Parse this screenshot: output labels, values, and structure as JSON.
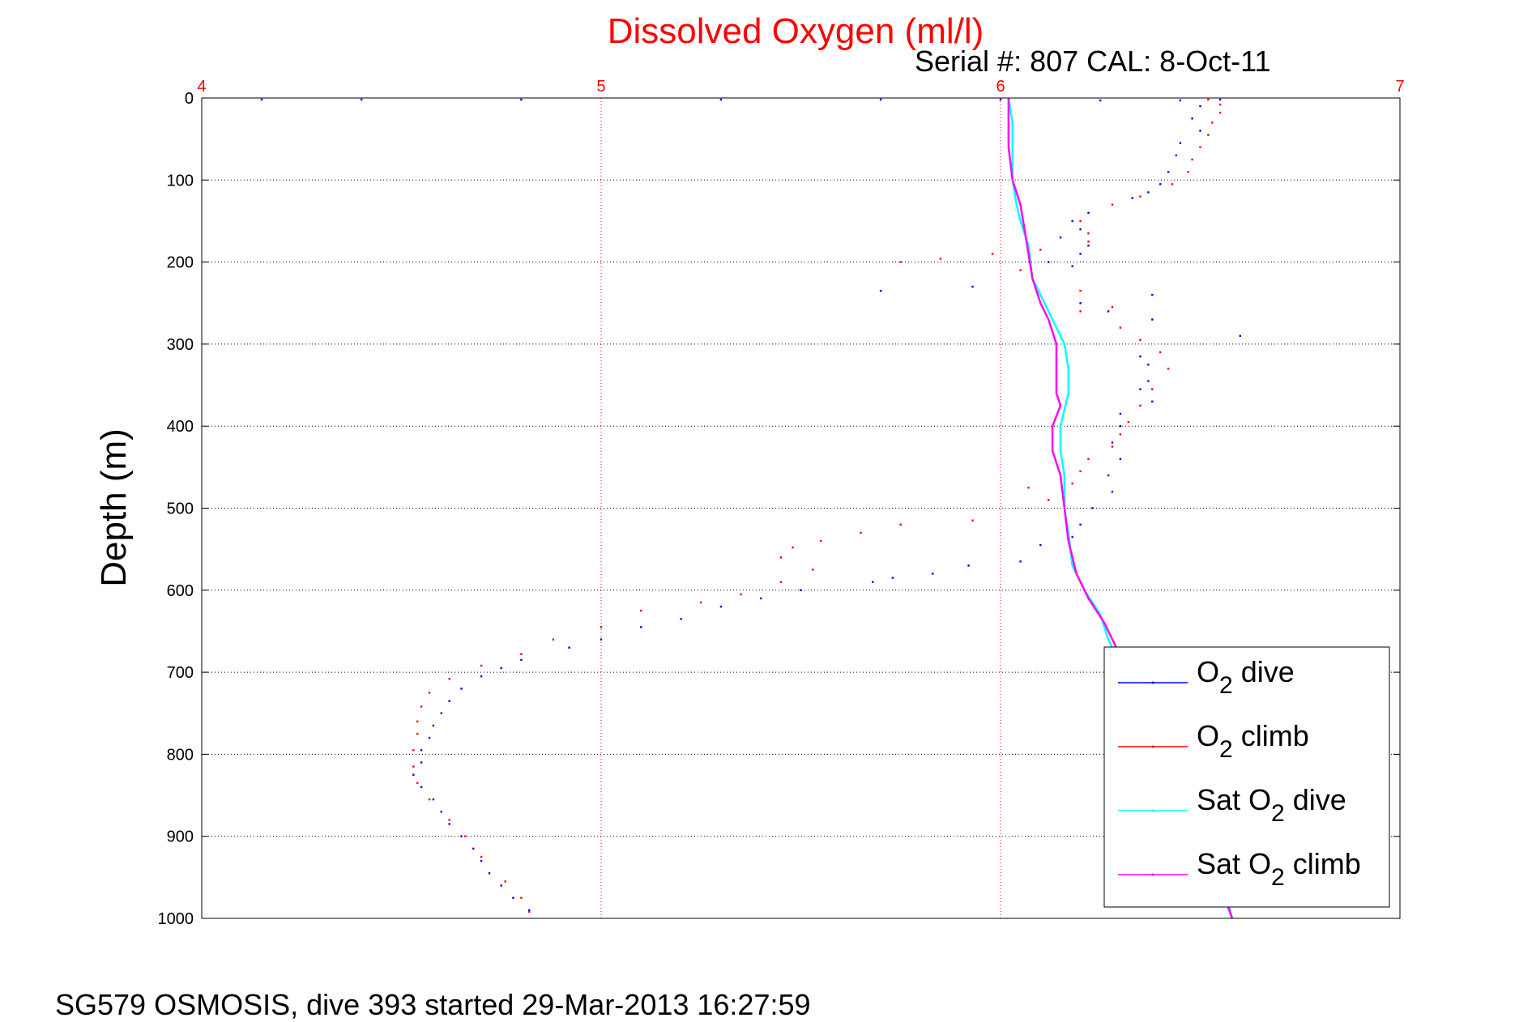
{
  "chart_data": {
    "type": "scatter",
    "title": "Dissolved Oxygen (ml/l)",
    "subtitle": "Serial #: 807  CAL: 8-Oct-11",
    "ylabel": "Depth (m)",
    "footer": "SG579 OSMOSIS, dive 393 started 29-Mar-2013 16:27:59",
    "xlim": [
      4,
      7
    ],
    "ylim": [
      0,
      1000
    ],
    "y_reversed": true,
    "x_axis_position": "top",
    "x_ticks": [
      {
        "value": 4,
        "label": "4"
      },
      {
        "value": 5,
        "label": "5"
      },
      {
        "value": 6,
        "label": "6"
      },
      {
        "value": 7,
        "label": "7"
      }
    ],
    "y_ticks": [
      {
        "value": 0,
        "label": "0"
      },
      {
        "value": 100,
        "label": "100"
      },
      {
        "value": 200,
        "label": "200"
      },
      {
        "value": 300,
        "label": "300"
      },
      {
        "value": 400,
        "label": "400"
      },
      {
        "value": 500,
        "label": "500"
      },
      {
        "value": 600,
        "label": "600"
      },
      {
        "value": 700,
        "label": "700"
      },
      {
        "value": 800,
        "label": "800"
      },
      {
        "value": 900,
        "label": "900"
      },
      {
        "value": 1000,
        "label": "1000"
      }
    ],
    "grid": true,
    "legend_position": "bottom-right",
    "colors": {
      "title": "#ff0000",
      "x_ticks": "#ff0000",
      "x_grid": "#ff0000",
      "y_grid": "#000000",
      "axis": "#000000"
    },
    "series": [
      {
        "name": "O2 dive",
        "name_main": "O",
        "name_sub": "2",
        "name_rest": " dive",
        "color": "#0000ff",
        "style": "points",
        "points": [
          [
            4.15,
            2
          ],
          [
            4.4,
            2
          ],
          [
            4.8,
            2
          ],
          [
            5.3,
            2
          ],
          [
            5.7,
            2
          ],
          [
            6.0,
            2
          ],
          [
            6.25,
            3
          ],
          [
            6.45,
            3
          ],
          [
            6.55,
            2
          ],
          [
            6.5,
            10
          ],
          [
            6.48,
            25
          ],
          [
            6.5,
            40
          ],
          [
            6.45,
            55
          ],
          [
            6.44,
            70
          ],
          [
            6.42,
            90
          ],
          [
            6.4,
            105
          ],
          [
            6.37,
            115
          ],
          [
            6.33,
            122
          ],
          [
            6.22,
            140
          ],
          [
            6.18,
            150
          ],
          [
            6.2,
            160
          ],
          [
            6.15,
            170
          ],
          [
            6.22,
            180
          ],
          [
            6.2,
            190
          ],
          [
            6.12,
            200
          ],
          [
            6.18,
            205
          ],
          [
            5.7,
            235
          ],
          [
            5.93,
            230
          ],
          [
            6.2,
            250
          ],
          [
            6.38,
            240
          ],
          [
            6.27,
            260
          ],
          [
            6.38,
            270
          ],
          [
            6.6,
            290
          ],
          [
            6.35,
            315
          ],
          [
            6.37,
            325
          ],
          [
            6.37,
            345
          ],
          [
            6.35,
            355
          ],
          [
            6.38,
            370
          ],
          [
            6.3,
            385
          ],
          [
            6.3,
            400
          ],
          [
            6.28,
            420
          ],
          [
            6.3,
            440
          ],
          [
            6.27,
            460
          ],
          [
            6.28,
            480
          ],
          [
            6.23,
            500
          ],
          [
            6.2,
            520
          ],
          [
            6.18,
            535
          ],
          [
            6.1,
            545
          ],
          [
            6.05,
            565
          ],
          [
            5.92,
            570
          ],
          [
            5.83,
            580
          ],
          [
            5.73,
            585
          ],
          [
            5.68,
            590
          ],
          [
            5.5,
            600
          ],
          [
            5.4,
            610
          ],
          [
            5.3,
            620
          ],
          [
            5.2,
            635
          ],
          [
            5.1,
            645
          ],
          [
            5.0,
            660
          ],
          [
            4.92,
            670
          ],
          [
            4.8,
            685
          ],
          [
            4.75,
            695
          ],
          [
            4.7,
            705
          ],
          [
            4.65,
            720
          ],
          [
            4.62,
            735
          ],
          [
            4.6,
            750
          ],
          [
            4.58,
            765
          ],
          [
            4.57,
            780
          ],
          [
            4.55,
            795
          ],
          [
            4.55,
            810
          ],
          [
            4.53,
            825
          ],
          [
            4.55,
            840
          ],
          [
            4.58,
            855
          ],
          [
            4.6,
            870
          ],
          [
            4.62,
            885
          ],
          [
            4.65,
            900
          ],
          [
            4.68,
            915
          ],
          [
            4.7,
            930
          ],
          [
            4.72,
            945
          ],
          [
            4.75,
            960
          ],
          [
            4.78,
            975
          ],
          [
            4.82,
            990
          ]
        ]
      },
      {
        "name": "O2 climb",
        "name_main": "O",
        "name_sub": "2",
        "name_rest": " climb",
        "color": "#ff0000",
        "style": "points",
        "points": [
          [
            6.52,
            2
          ],
          [
            6.55,
            8
          ],
          [
            6.55,
            18
          ],
          [
            6.53,
            30
          ],
          [
            6.52,
            45
          ],
          [
            6.5,
            60
          ],
          [
            6.48,
            75
          ],
          [
            6.47,
            90
          ],
          [
            6.43,
            105
          ],
          [
            6.35,
            120
          ],
          [
            6.28,
            130
          ],
          [
            6.2,
            150
          ],
          [
            6.22,
            165
          ],
          [
            6.22,
            175
          ],
          [
            6.1,
            185
          ],
          [
            5.98,
            190
          ],
          [
            5.85,
            196
          ],
          [
            5.75,
            200
          ],
          [
            6.05,
            210
          ],
          [
            6.2,
            235
          ],
          [
            6.28,
            255
          ],
          [
            6.2,
            260
          ],
          [
            6.3,
            280
          ],
          [
            6.35,
            295
          ],
          [
            6.4,
            310
          ],
          [
            6.42,
            330
          ],
          [
            6.38,
            355
          ],
          [
            6.35,
            375
          ],
          [
            6.32,
            395
          ],
          [
            6.3,
            410
          ],
          [
            6.28,
            425
          ],
          [
            6.22,
            440
          ],
          [
            6.2,
            455
          ],
          [
            6.18,
            470
          ],
          [
            6.07,
            475
          ],
          [
            6.12,
            490
          ],
          [
            5.93,
            515
          ],
          [
            5.75,
            520
          ],
          [
            5.65,
            530
          ],
          [
            5.55,
            540
          ],
          [
            5.48,
            548
          ],
          [
            5.45,
            560
          ],
          [
            5.53,
            575
          ],
          [
            5.45,
            590
          ],
          [
            5.35,
            605
          ],
          [
            5.25,
            615
          ],
          [
            5.1,
            625
          ],
          [
            5.0,
            645
          ],
          [
            4.88,
            660
          ],
          [
            4.8,
            678
          ],
          [
            4.7,
            692
          ],
          [
            4.62,
            708
          ],
          [
            4.57,
            725
          ],
          [
            4.55,
            742
          ],
          [
            4.54,
            760
          ],
          [
            4.54,
            775
          ],
          [
            4.53,
            795
          ],
          [
            4.53,
            815
          ],
          [
            4.54,
            835
          ],
          [
            4.57,
            855
          ],
          [
            4.62,
            880
          ],
          [
            4.66,
            900
          ],
          [
            4.7,
            925
          ],
          [
            4.76,
            955
          ],
          [
            4.8,
            975
          ],
          [
            4.82,
            992
          ]
        ]
      },
      {
        "name": "Sat O2 dive",
        "name_main": "Sat O",
        "name_sub": "2",
        "name_rest": " dive",
        "color": "#00ffff",
        "style": "line",
        "points": [
          [
            6.02,
            0
          ],
          [
            6.03,
            30
          ],
          [
            6.03,
            60
          ],
          [
            6.03,
            100
          ],
          [
            6.04,
            130
          ],
          [
            6.05,
            150
          ],
          [
            6.07,
            180
          ],
          [
            6.08,
            220
          ],
          [
            6.1,
            240
          ],
          [
            6.12,
            260
          ],
          [
            6.14,
            280
          ],
          [
            6.16,
            300
          ],
          [
            6.17,
            330
          ],
          [
            6.17,
            360
          ],
          [
            6.16,
            380
          ],
          [
            6.15,
            400
          ],
          [
            6.15,
            430
          ],
          [
            6.16,
            460
          ],
          [
            6.16,
            500
          ],
          [
            6.17,
            530
          ],
          [
            6.18,
            570
          ],
          [
            6.21,
            600
          ],
          [
            6.25,
            630
          ],
          [
            6.27,
            660
          ],
          [
            6.3,
            690
          ],
          [
            6.33,
            720
          ],
          [
            6.36,
            750
          ],
          [
            6.38,
            780
          ],
          [
            6.4,
            810
          ],
          [
            6.43,
            840
          ],
          [
            6.46,
            870
          ],
          [
            6.5,
            920
          ],
          [
            6.56,
            960
          ],
          [
            6.58,
            1000
          ]
        ]
      },
      {
        "name": "Sat O2 climb",
        "name_main": "Sat O",
        "name_sub": "2",
        "name_rest": " climb",
        "color": "#ff00ff",
        "style": "line",
        "points": [
          [
            6.02,
            0
          ],
          [
            6.02,
            30
          ],
          [
            6.02,
            60
          ],
          [
            6.03,
            100
          ],
          [
            6.05,
            130
          ],
          [
            6.06,
            160
          ],
          [
            6.07,
            190
          ],
          [
            6.08,
            220
          ],
          [
            6.1,
            250
          ],
          [
            6.12,
            270
          ],
          [
            6.14,
            300
          ],
          [
            6.14,
            330
          ],
          [
            6.14,
            360
          ],
          [
            6.15,
            375
          ],
          [
            6.13,
            400
          ],
          [
            6.13,
            430
          ],
          [
            6.15,
            460
          ],
          [
            6.16,
            500
          ],
          [
            6.17,
            540
          ],
          [
            6.19,
            580
          ],
          [
            6.22,
            610
          ],
          [
            6.26,
            640
          ],
          [
            6.3,
            680
          ],
          [
            6.33,
            710
          ],
          [
            6.36,
            740
          ],
          [
            6.38,
            770
          ],
          [
            6.4,
            800
          ],
          [
            6.43,
            840
          ],
          [
            6.46,
            870
          ],
          [
            6.5,
            920
          ],
          [
            6.55,
            960
          ],
          [
            6.58,
            1000
          ]
        ]
      }
    ]
  }
}
